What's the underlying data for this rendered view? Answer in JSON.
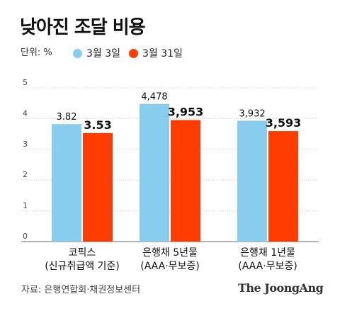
{
  "title": "낮아진 조달 비용",
  "unit_label": "단위: %",
  "legend": [
    {
      "label": "3월 3일",
      "color": "#88CCEE"
    },
    {
      "label": "3월 31일",
      "color": "#FF3D00"
    }
  ],
  "source": "자료: 은행연합회·채권정보센터",
  "logo": "The JoongAng",
  "colors": {
    "series_a": "#88CCEE",
    "series_b": "#FF3D00",
    "grid": "#cccccc",
    "axis": "#888888"
  },
  "chart_data": {
    "type": "bar",
    "title": "낮아진 조달 비용",
    "categories": [
      [
        "코픽스",
        "(신규취급액 기준)"
      ],
      [
        "은행채 5년물",
        "(AAA·무보증)"
      ],
      [
        "은행채 1년물",
        "(AAA·무보증)"
      ]
    ],
    "series": [
      {
        "name": "3월 3일",
        "values": [
          3.82,
          4.478,
          3.932
        ],
        "labels": [
          "3.82",
          "4,478",
          "3,932"
        ]
      },
      {
        "name": "3월 31일",
        "values": [
          3.53,
          3.953,
          3.593
        ],
        "labels": [
          "3.53",
          "3,953",
          "3,593"
        ]
      }
    ],
    "ylim": [
      0,
      5
    ],
    "yticks": [
      "0",
      "1",
      "2",
      "3",
      "4",
      "5"
    ],
    "xlabel": "",
    "ylabel": "",
    "grid": true,
    "legend_position": "top-left"
  }
}
